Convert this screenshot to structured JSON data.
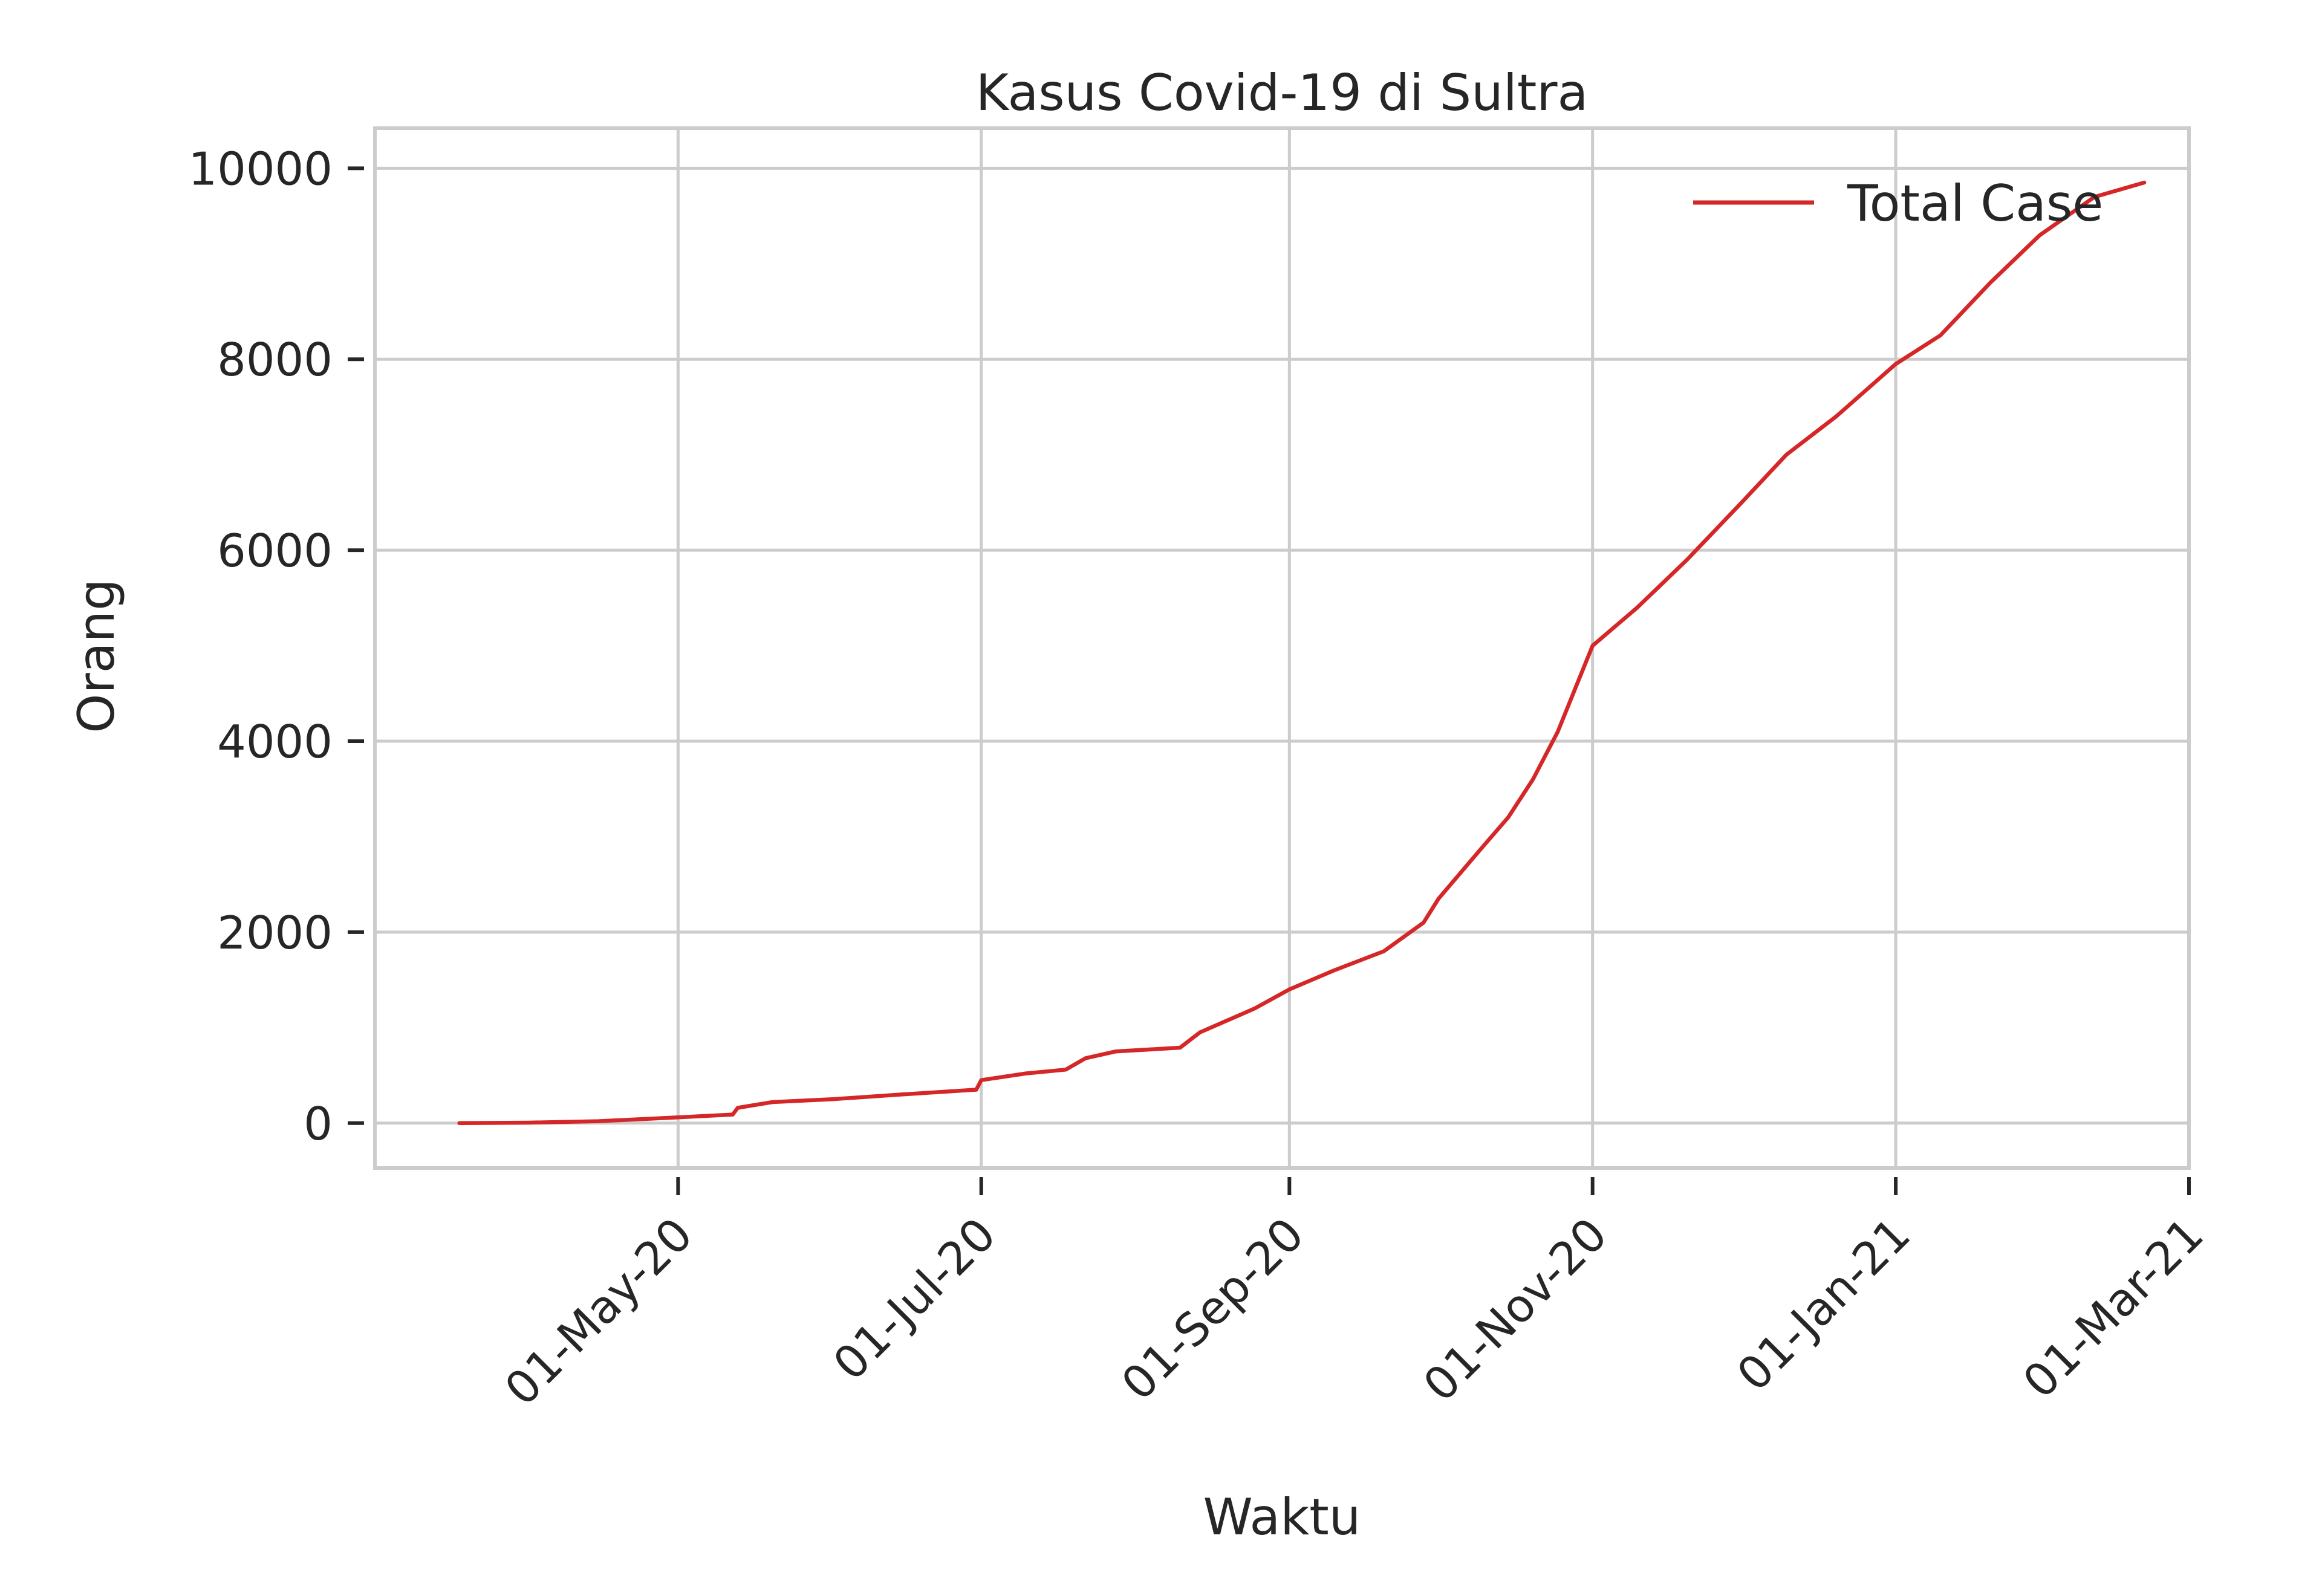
{
  "chart_data": {
    "type": "line",
    "title": "Kasus Covid-19 di Sultra",
    "xlabel": "Waktu",
    "ylabel": "Orang",
    "x_type": "date",
    "xlim": [
      "2020-03-01",
      "2021-03-01"
    ],
    "ylim": [
      -470,
      10420
    ],
    "grid": true,
    "legend_position": "top-right",
    "y_ticks": [
      0,
      2000,
      4000,
      6000,
      8000,
      10000
    ],
    "y_tick_labels": [
      "0",
      "2000",
      "4000",
      "6000",
      "8000",
      "10000"
    ],
    "x_ticks": [
      "2020-05-01",
      "2020-07-01",
      "2020-09-01",
      "2020-11-01",
      "2021-01-01",
      "2021-03-01"
    ],
    "x_tick_labels": [
      "01-May-20",
      "01-Jul-20",
      "01-Sep-20",
      "01-Nov-20",
      "01-Jan-21",
      "01-Mar-21"
    ],
    "colors": {
      "line": "#d62728",
      "grid": "#cccccc",
      "text": "#262626"
    },
    "series": [
      {
        "name": "Total Case",
        "color": "#d62728",
        "x": [
          "2020-03-18",
          "2020-04-01",
          "2020-04-15",
          "2020-05-01",
          "2020-05-12",
          "2020-05-13",
          "2020-05-20",
          "2020-06-01",
          "2020-06-15",
          "2020-06-30",
          "2020-07-01",
          "2020-07-10",
          "2020-07-18",
          "2020-07-22",
          "2020-07-28",
          "2020-08-10",
          "2020-08-14",
          "2020-08-25",
          "2020-09-01",
          "2020-09-10",
          "2020-09-20",
          "2020-09-28",
          "2020-10-01",
          "2020-10-10",
          "2020-10-15",
          "2020-10-20",
          "2020-10-25",
          "2020-11-01",
          "2020-11-10",
          "2020-11-20",
          "2020-12-01",
          "2020-12-10",
          "2020-12-20",
          "2021-01-01",
          "2021-01-10",
          "2021-01-20",
          "2021-01-30",
          "2021-02-10",
          "2021-02-20"
        ],
        "y": [
          0,
          5,
          20,
          60,
          90,
          160,
          220,
          250,
          300,
          350,
          450,
          520,
          560,
          680,
          750,
          790,
          950,
          1200,
          1400,
          1600,
          1800,
          2100,
          2350,
          2900,
          3200,
          3600,
          4100,
          5000,
          5400,
          5900,
          6500,
          7000,
          7400,
          7950,
          8250,
          8800,
          9300,
          9700,
          9850
        ]
      }
    ]
  }
}
